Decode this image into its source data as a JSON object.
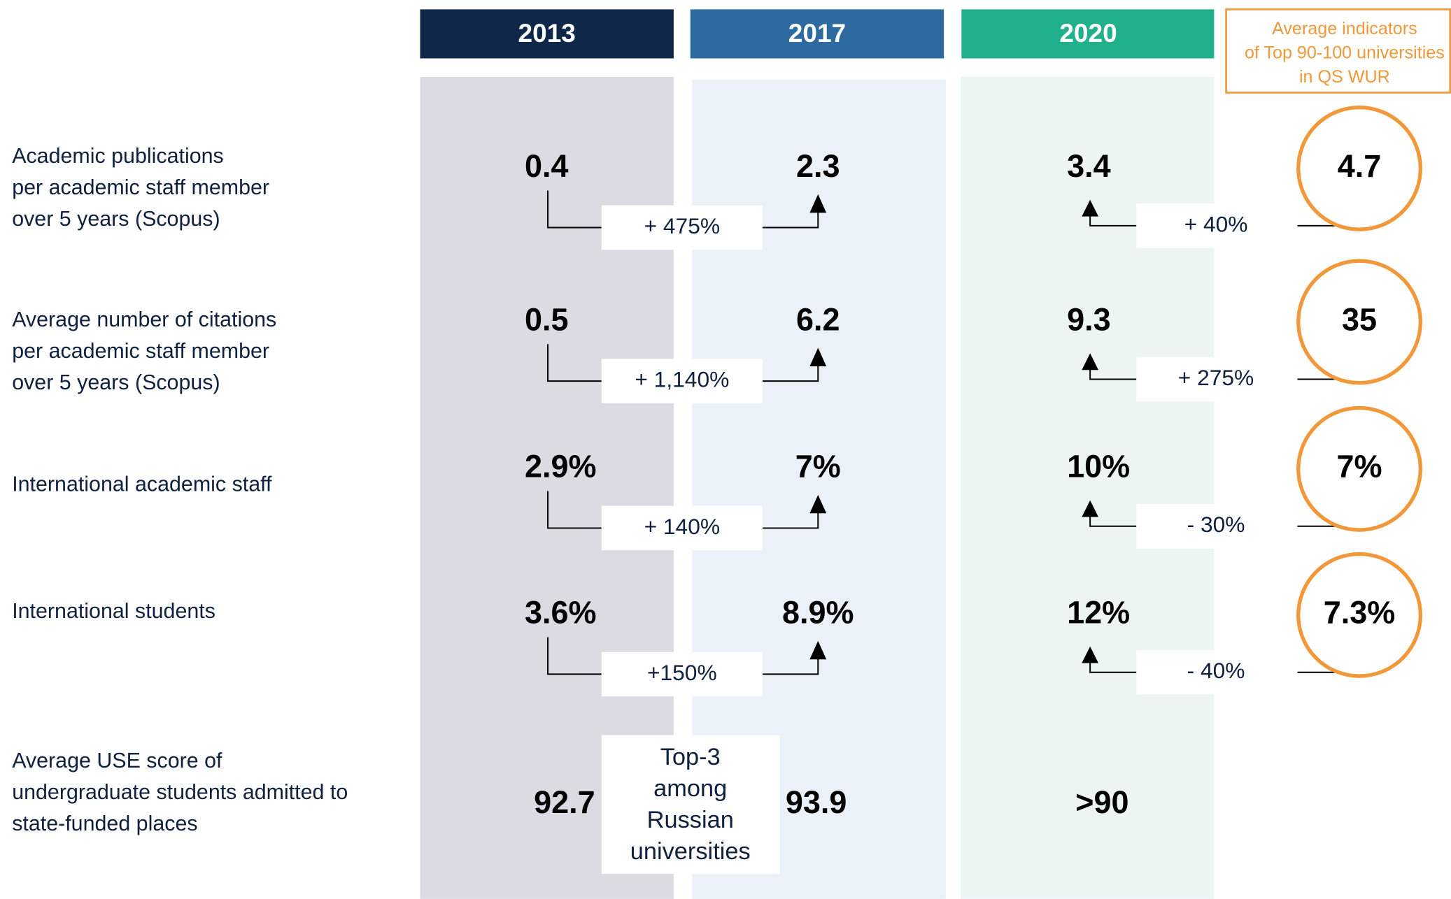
{
  "headers": [
    "2013",
    "2017",
    "2020"
  ],
  "benchmark_header": [
    "Average indicators",
    "of Top 90-100 universities",
    "in QS  WUR"
  ],
  "rows": [
    {
      "label": [
        "Academic publications",
        "per academic staff member",
        "over 5 years (Scopus)"
      ],
      "values": [
        "0.4",
        "2.3",
        "3.4"
      ],
      "change": "+ 475%",
      "gap": "+ 40%",
      "benchmark": "4.7"
    },
    {
      "label": [
        "Average number of citations",
        "per academic staff member",
        "over 5 years (Scopus)"
      ],
      "values": [
        "0.5",
        "6.2",
        "9.3"
      ],
      "change": "+ 1,140%",
      "gap": "+ 275%",
      "benchmark": "35"
    },
    {
      "label": [
        "International academic staff"
      ],
      "values": [
        "2.9%",
        "7%",
        "10%"
      ],
      "change": "+ 140%",
      "gap": "- 30%",
      "benchmark": "7%"
    },
    {
      "label": [
        "International students"
      ],
      "values": [
        "3.6%",
        "8.9%",
        "12%"
      ],
      "change": "+150%",
      "gap": "- 40%",
      "benchmark": "7.3%"
    },
    {
      "label": [
        "Average USE score of",
        "undergraduate students admitted to",
        "state-funded places"
      ],
      "values": [
        "92.7",
        "93.9",
        ">90"
      ],
      "note": [
        "Top-3",
        "among",
        "Russian",
        "universities"
      ]
    }
  ]
}
